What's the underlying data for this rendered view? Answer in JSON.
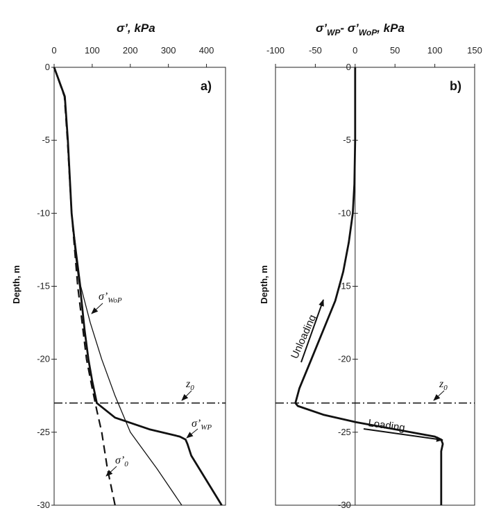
{
  "chart_data": [
    {
      "type": "line",
      "panel_label": "a)",
      "xlabel_main": "σ’",
      "xlabel_unit": "kPa",
      "ylabel": "Depth, m",
      "xlim": [
        0,
        450
      ],
      "ylim": [
        -30,
        0
      ],
      "xticks": [
        "0",
        "100",
        "200",
        "300",
        "400"
      ],
      "yticks": [
        "0",
        "-5",
        "-10",
        "-15",
        "-20",
        "-25",
        "-30"
      ],
      "grid": false,
      "series": [
        {
          "name": "σ'WP",
          "style": "thick-solid",
          "x": [
            0,
            28,
            36,
            46,
            58,
            68,
            80,
            90,
            100,
            112,
            160,
            250,
            330,
            345,
            350,
            360,
            440
          ],
          "y": [
            0,
            -2,
            -5,
            -10,
            -13,
            -15,
            -18,
            -20,
            -21.5,
            -23,
            -24,
            -24.8,
            -25.3,
            -25.5,
            -25.8,
            -26.6,
            -30
          ]
        },
        {
          "name": "σ'WoP",
          "style": "thin-solid",
          "x": [
            0,
            28,
            36,
            46,
            70,
            95,
            125,
            160,
            200,
            270,
            335
          ],
          "y": [
            0,
            -2,
            -5,
            -10,
            -15,
            -17.5,
            -20,
            -22.5,
            -25,
            -27.5,
            -30
          ]
        },
        {
          "name": "σ'0",
          "style": "dashed",
          "x": [
            0,
            27,
            35,
            46,
            62,
            85,
            100,
            112,
            125,
            140,
            160
          ],
          "y": [
            0,
            -2,
            -5,
            -10,
            -15,
            -20,
            -22,
            -23.5,
            -25,
            -27.5,
            -30
          ]
        }
      ],
      "hline": {
        "label": "z0",
        "y": -23
      },
      "annotations": [
        {
          "text": "σ'WoP",
          "main": "σ'",
          "sub": "WoP"
        },
        {
          "text": "σ'WP",
          "main": "σ'",
          "sub": "WP"
        },
        {
          "text": "σ'0",
          "main": "σ'",
          "sub": "0"
        },
        {
          "text": "z0",
          "main": "z",
          "sub": "0"
        }
      ]
    },
    {
      "type": "line",
      "panel_label": "b)",
      "xlabel_main": "σ’WP - σ’WoP",
      "xlabel_unit": "kPa",
      "ylabel": "Depth, m",
      "xlim": [
        -100,
        150
      ],
      "ylim": [
        -30,
        0
      ],
      "xticks": [
        "-100",
        "-50",
        "0",
        "50",
        "100",
        "150"
      ],
      "yticks": [
        "0",
        "-5",
        "-10",
        "-15",
        "-20",
        "-25",
        "-30"
      ],
      "grid": false,
      "series": [
        {
          "name": "σ'WP - σ'WoP",
          "style": "thick-solid",
          "x": [
            0,
            0,
            -1,
            -3,
            -8,
            -15,
            -25,
            -40,
            -55,
            -70,
            -75,
            -72,
            -40,
            0,
            50,
            100,
            108,
            110,
            108,
            108
          ],
          "y": [
            0,
            -5,
            -8,
            -10,
            -12,
            -14,
            -16,
            -18,
            -20,
            -22,
            -23,
            -23.2,
            -23.8,
            -24.3,
            -24.8,
            -25.3,
            -25.5,
            -25.8,
            -26.3,
            -30
          ]
        }
      ],
      "hline": {
        "label": "z0",
        "y": -23
      },
      "annotations": [
        {
          "text": "Unloading"
        },
        {
          "text": "Loading"
        },
        {
          "text": "z0",
          "main": "z",
          "sub": "0"
        }
      ]
    }
  ],
  "labels": {
    "a_title_main": "σ’, ",
    "a_title_unit": "kPa",
    "b_title_main": "σ’",
    "b_title_sub1": "WP",
    "b_title_mid": "- σ’",
    "b_title_sub2": "WoP",
    "b_title_unit": ", kPa",
    "ylabel": "Depth, m",
    "panel_a": "a)",
    "panel_b": "b)",
    "sig_main": "σ’",
    "sub_wop": "WoP",
    "sub_wp": "WP",
    "sub_0": "0",
    "z_main": "z",
    "unloading": "Unloading",
    "loading": "Loading"
  }
}
